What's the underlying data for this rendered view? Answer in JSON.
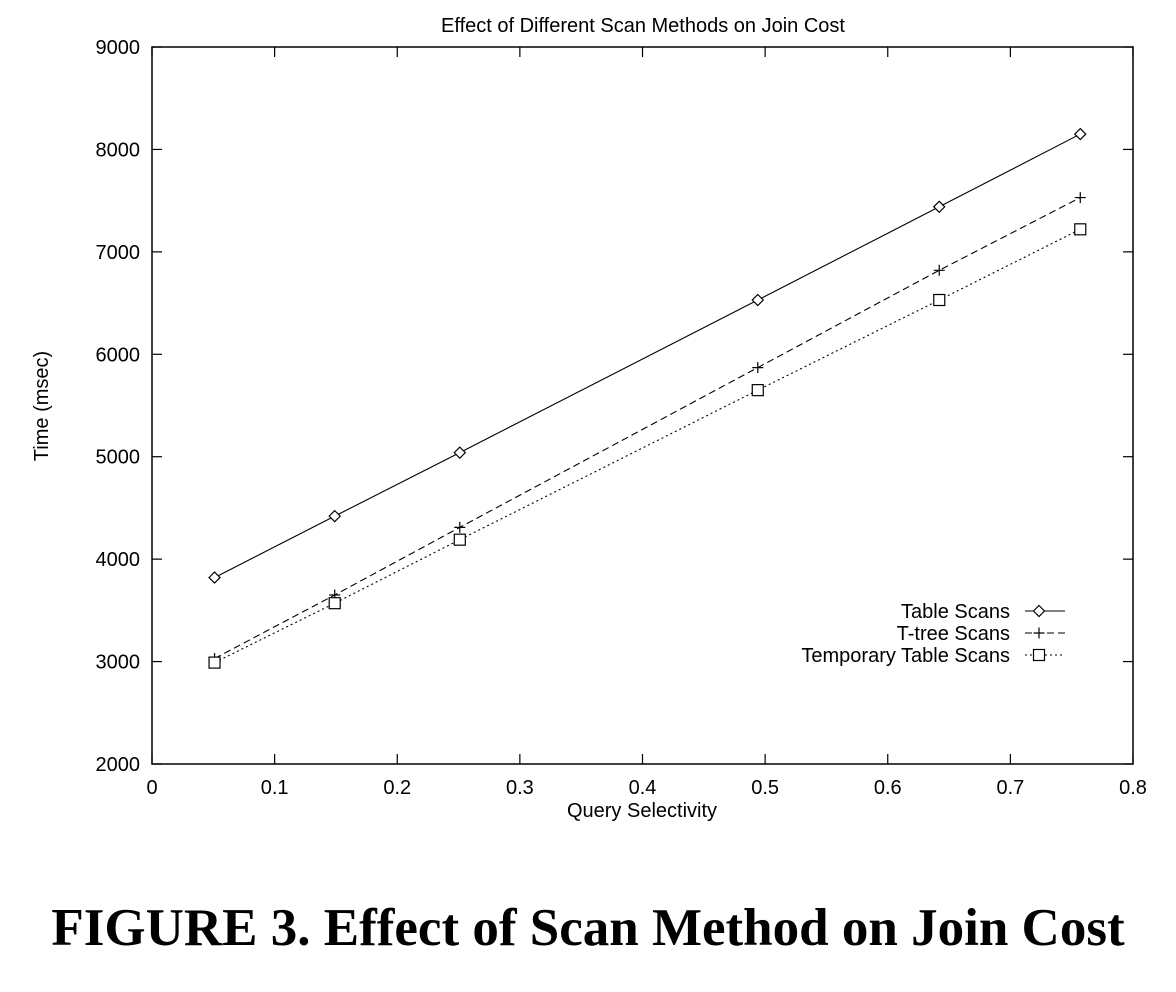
{
  "figure_caption": "FIGURE 3. Effect of Scan Method on Join Cost",
  "chart_data": {
    "type": "line",
    "title": "Effect of Different Scan Methods on Join Cost",
    "xlabel": "Query Selectivity",
    "ylabel": "Time (msec)",
    "xlim": [
      0,
      0.8
    ],
    "ylim": [
      2000,
      9000
    ],
    "xticks": [
      0,
      0.1,
      0.2,
      0.3,
      0.4,
      0.5,
      0.6,
      0.7,
      0.8
    ],
    "xtick_labels": [
      "0",
      "0.1",
      "0.2",
      "0.3",
      "0.4",
      "0.5",
      "0.6",
      "0.7",
      "0.8"
    ],
    "yticks": [
      2000,
      3000,
      4000,
      5000,
      6000,
      7000,
      8000,
      9000
    ],
    "ytick_labels": [
      "2000",
      "3000",
      "4000",
      "5000",
      "6000",
      "7000",
      "8000",
      "9000"
    ],
    "grid": false,
    "legend_position": "bottom-right",
    "x": [
      0.051,
      0.149,
      0.251,
      0.494,
      0.642,
      0.757
    ],
    "series": [
      {
        "name": "Table Scans",
        "marker": "diamond",
        "line": "solid",
        "color": "#000000",
        "values": [
          3820,
          4420,
          5040,
          6530,
          7440,
          8150
        ]
      },
      {
        "name": "T-tree Scans",
        "marker": "plus",
        "line": "dashed",
        "color": "#000000",
        "values": [
          3030,
          3650,
          4310,
          5870,
          6820,
          7530
        ]
      },
      {
        "name": "Temporary Table Scans",
        "marker": "square",
        "line": "dotted",
        "color": "#000000",
        "values": [
          2990,
          3570,
          4190,
          5650,
          6530,
          7220
        ]
      }
    ]
  }
}
